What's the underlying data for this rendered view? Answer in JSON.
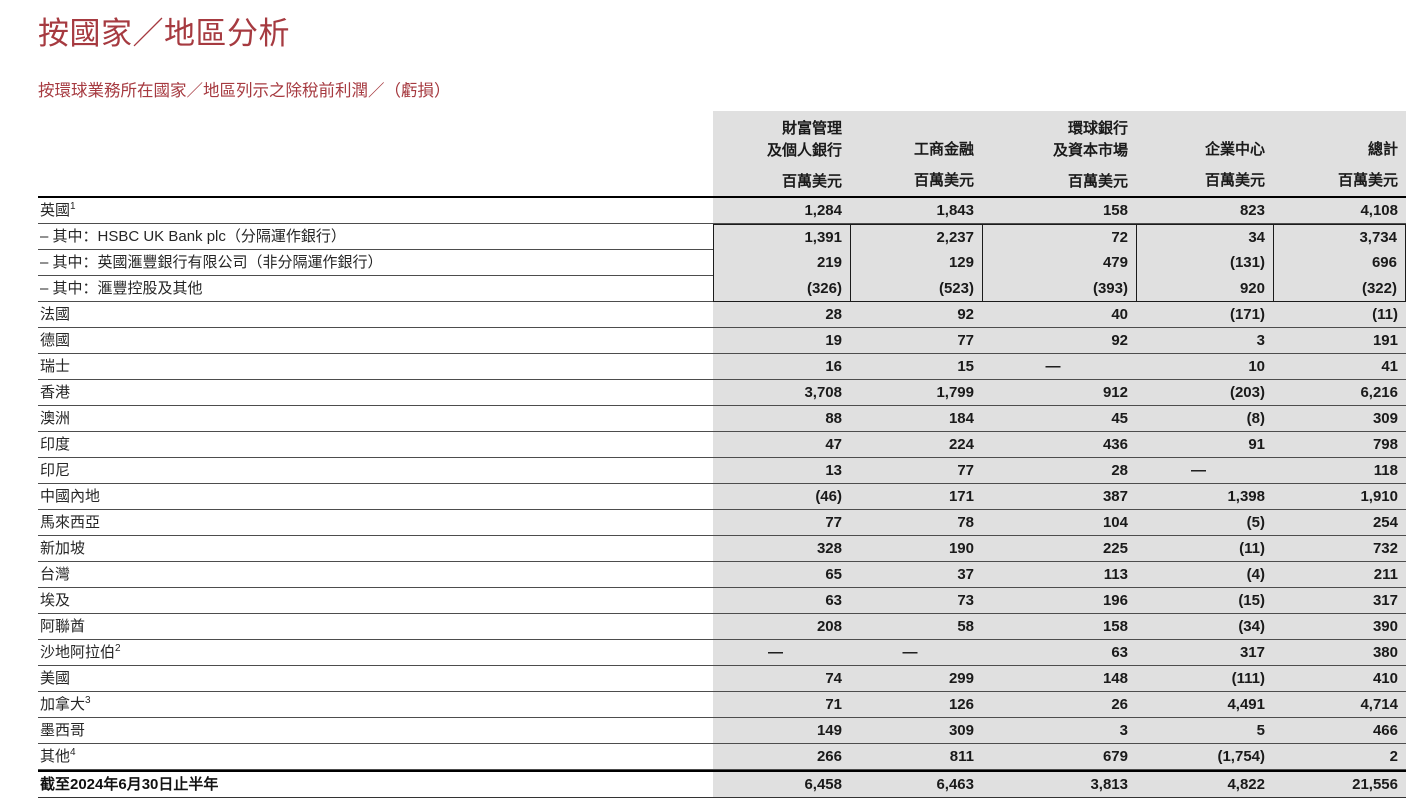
{
  "page": {
    "title": "按國家／地區分析",
    "subtitle": "按環球業務所在國家／地區列示之除稅前利潤／（虧損）"
  },
  "colors": {
    "heading_red": "#a63a40",
    "cell_gray": "#e0e0e0",
    "text_dark": "#1a1a1a"
  },
  "table": {
    "unit_label": "百萬美元",
    "columns": [
      {
        "label_lines": [
          "財富管理",
          "及個人銀行"
        ],
        "unit": "百萬美元"
      },
      {
        "label_lines": [
          "工商金融"
        ],
        "unit": "百萬美元"
      },
      {
        "label_lines": [
          "環球銀行",
          "及資本市場"
        ],
        "unit": "百萬美元"
      },
      {
        "label_lines": [
          "企業中心"
        ],
        "unit": "百萬美元"
      },
      {
        "label_lines": [
          "總計"
        ],
        "unit": "百萬美元"
      }
    ],
    "rows": [
      {
        "label": "英國",
        "sup": "1",
        "boxed": false,
        "values": [
          "1,284",
          "1,843",
          "158",
          "823",
          "4,108"
        ]
      },
      {
        "label": "– 其中：HSBC UK Bank plc（分隔運作銀行）",
        "sup": "",
        "boxed": true,
        "values": [
          "1,391",
          "2,237",
          "72",
          "34",
          "3,734"
        ]
      },
      {
        "label": "– 其中：英國滙豐銀行有限公司（非分隔運作銀行）",
        "sup": "",
        "boxed": true,
        "values": [
          "219",
          "129",
          "479",
          "(131)",
          "696"
        ]
      },
      {
        "label": "– 其中：滙豐控股及其他",
        "sup": "",
        "boxed": true,
        "values": [
          "(326)",
          "(523)",
          "(393)",
          "920",
          "(322)"
        ]
      },
      {
        "label": "法國",
        "sup": "",
        "boxed": false,
        "values": [
          "28",
          "92",
          "40",
          "(171)",
          "(11)"
        ]
      },
      {
        "label": "德國",
        "sup": "",
        "boxed": false,
        "values": [
          "19",
          "77",
          "92",
          "3",
          "191"
        ]
      },
      {
        "label": "瑞士",
        "sup": "",
        "boxed": false,
        "values": [
          "16",
          "15",
          "—",
          "10",
          "41"
        ]
      },
      {
        "label": "香港",
        "sup": "",
        "boxed": false,
        "values": [
          "3,708",
          "1,799",
          "912",
          "(203)",
          "6,216"
        ]
      },
      {
        "label": "澳洲",
        "sup": "",
        "boxed": false,
        "values": [
          "88",
          "184",
          "45",
          "(8)",
          "309"
        ]
      },
      {
        "label": "印度",
        "sup": "",
        "boxed": false,
        "values": [
          "47",
          "224",
          "436",
          "91",
          "798"
        ]
      },
      {
        "label": "印尼",
        "sup": "",
        "boxed": false,
        "values": [
          "13",
          "77",
          "28",
          "—",
          "118"
        ]
      },
      {
        "label": "中國內地",
        "sup": "",
        "boxed": false,
        "values": [
          "(46)",
          "171",
          "387",
          "1,398",
          "1,910"
        ]
      },
      {
        "label": "馬來西亞",
        "sup": "",
        "boxed": false,
        "values": [
          "77",
          "78",
          "104",
          "(5)",
          "254"
        ]
      },
      {
        "label": "新加坡",
        "sup": "",
        "boxed": false,
        "values": [
          "328",
          "190",
          "225",
          "(11)",
          "732"
        ]
      },
      {
        "label": "台灣",
        "sup": "",
        "boxed": false,
        "values": [
          "65",
          "37",
          "113",
          "(4)",
          "211"
        ]
      },
      {
        "label": "埃及",
        "sup": "",
        "boxed": false,
        "values": [
          "63",
          "73",
          "196",
          "(15)",
          "317"
        ]
      },
      {
        "label": "阿聯酋",
        "sup": "",
        "boxed": false,
        "values": [
          "208",
          "58",
          "158",
          "(34)",
          "390"
        ]
      },
      {
        "label": "沙地阿拉伯",
        "sup": "2",
        "boxed": false,
        "values": [
          "—",
          "—",
          "63",
          "317",
          "380"
        ]
      },
      {
        "label": "美國",
        "sup": "",
        "boxed": false,
        "values": [
          "74",
          "299",
          "148",
          "(111)",
          "410"
        ]
      },
      {
        "label": "加拿大",
        "sup": "3",
        "boxed": false,
        "values": [
          "71",
          "126",
          "26",
          "4,491",
          "4,714"
        ]
      },
      {
        "label": "墨西哥",
        "sup": "",
        "boxed": false,
        "values": [
          "149",
          "309",
          "3",
          "5",
          "466"
        ]
      },
      {
        "label": "其他",
        "sup": "4",
        "boxed": false,
        "values": [
          "266",
          "811",
          "679",
          "(1,754)",
          "2"
        ]
      }
    ],
    "total_row": {
      "label": "截至2024年6月30日止半年",
      "values": [
        "6,458",
        "6,463",
        "3,813",
        "4,822",
        "21,556"
      ]
    }
  }
}
